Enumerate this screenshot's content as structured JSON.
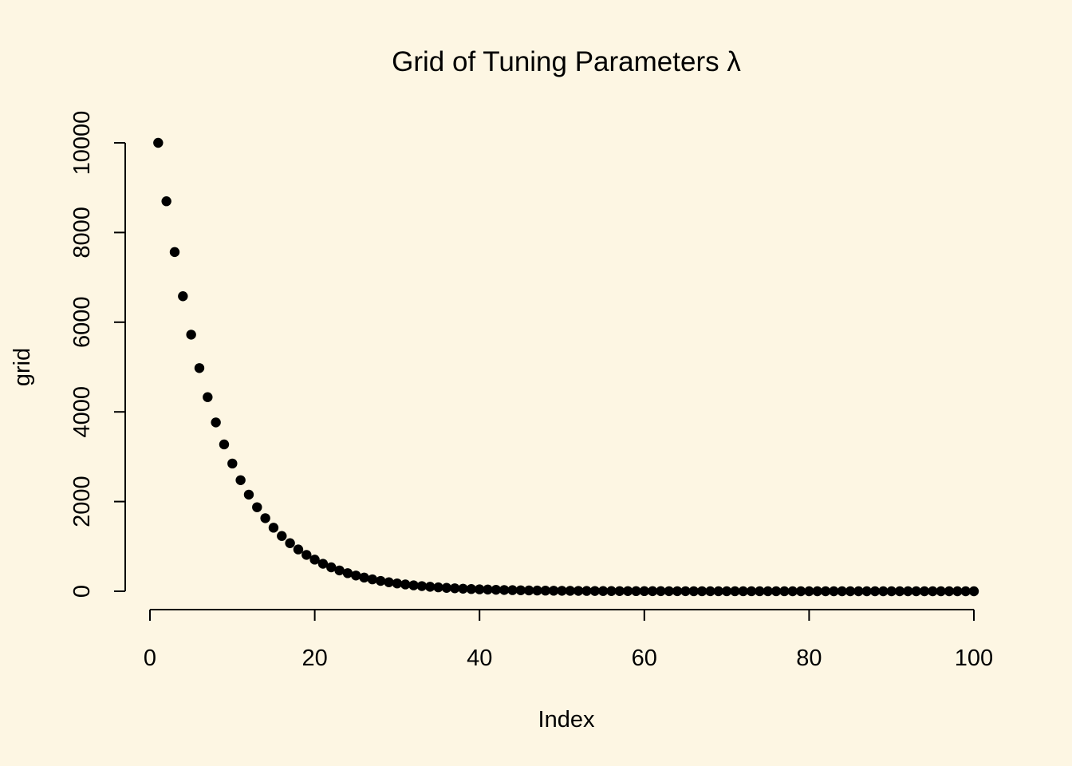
{
  "background": "#FDF6E3",
  "point_color": "#000000",
  "chart_data": {
    "type": "scatter",
    "title": "Grid of Tuning Parameters λ",
    "xlabel": "Index",
    "ylabel": "grid",
    "xlim": [
      1,
      100
    ],
    "ylim": [
      0.01,
      10000
    ],
    "x_ticks": [
      0,
      20,
      40,
      60,
      80,
      100
    ],
    "y_ticks": [
      0,
      2000,
      4000,
      6000,
      8000,
      10000
    ],
    "x_tick_labels": [
      "0",
      "20",
      "40",
      "60",
      "80",
      "100"
    ],
    "y_tick_labels": [
      "0",
      "2000",
      "4000",
      "6000",
      "8000",
      "10000"
    ],
    "grid": false,
    "legend": "none",
    "x": [
      1,
      2,
      3,
      4,
      5,
      6,
      7,
      8,
      9,
      10,
      11,
      12,
      13,
      14,
      15,
      16,
      17,
      18,
      19,
      20,
      21,
      22,
      23,
      24,
      25,
      26,
      27,
      28,
      29,
      30,
      31,
      32,
      33,
      34,
      35,
      36,
      37,
      38,
      39,
      40,
      41,
      42,
      43,
      44,
      45,
      46,
      47,
      48,
      49,
      50,
      51,
      52,
      53,
      54,
      55,
      56,
      57,
      58,
      59,
      60,
      61,
      62,
      63,
      64,
      65,
      66,
      67,
      68,
      69,
      70,
      71,
      72,
      73,
      74,
      75,
      76,
      77,
      78,
      79,
      80,
      81,
      82,
      83,
      84,
      85,
      86,
      87,
      88,
      89,
      90,
      91,
      92,
      93,
      94,
      95,
      96,
      97,
      98,
      99,
      100
    ],
    "y": [
      10000,
      8697.49,
      7564.63,
      6579.33,
      5722.37,
      4977.02,
      4328.76,
      3764.94,
      3274.55,
      2848.04,
      2477.08,
      2154.43,
      1873.82,
      1629.75,
      1417.47,
      1232.85,
      1072.27,
      932.6,
      811.13,
      705.48,
      613.59,
      533.67,
      464.16,
      403.7,
      351.12,
      305.39,
      265.61,
      231.01,
      200.92,
      174.75,
      151.99,
      132.19,
      114.98,
      100,
      86.97,
      75.65,
      65.79,
      57.22,
      49.77,
      43.29,
      37.65,
      32.75,
      28.48,
      24.77,
      21.54,
      18.74,
      16.3,
      14.17,
      12.33,
      10.72,
      9.33,
      8.11,
      7.05,
      6.14,
      5.34,
      4.64,
      4.04,
      3.51,
      3.05,
      2.66,
      2.31,
      2.01,
      1.75,
      1.52,
      1.32,
      1.15,
      1,
      0.87,
      0.76,
      0.66,
      0.57,
      0.5,
      0.43,
      0.38,
      0.33,
      0.28,
      0.25,
      0.21,
      0.19,
      0.16,
      0.14,
      0.12,
      0.11,
      0.09,
      0.08,
      0.07,
      0.06,
      0.05,
      0.05,
      0.04,
      0.04,
      0.03,
      0.03,
      0.02,
      0.02,
      0.02,
      0.02,
      0.01,
      0.01,
      0.01
    ]
  }
}
